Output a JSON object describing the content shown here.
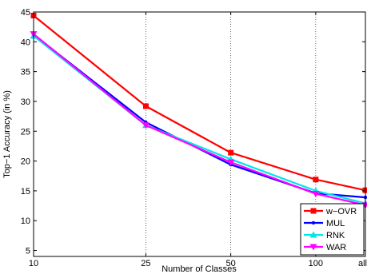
{
  "chart_data": {
    "type": "line",
    "xlabel": "Number of Classes",
    "ylabel": "Top−1 Accuracy (in %)",
    "x_categories": [
      "10",
      "25",
      "50",
      "100",
      "all"
    ],
    "x_positions": [
      10,
      25,
      50,
      100,
      150
    ],
    "x_scale": "log",
    "xlim": [
      10,
      150
    ],
    "ylim": [
      4,
      45
    ],
    "yticks": [
      5,
      10,
      15,
      20,
      25,
      30,
      35,
      40,
      45
    ],
    "grid": "dotted vertical at x ticks",
    "legend_position": "bottom-right",
    "series": [
      {
        "name": "w−OVR",
        "color": "#ff0000",
        "marker": "square",
        "values": [
          44.4,
          29.2,
          21.4,
          16.9,
          15.1
        ]
      },
      {
        "name": "MUL",
        "color": "#0000ff",
        "marker": "point",
        "values": [
          41.2,
          26.5,
          19.4,
          14.6,
          13.9
        ]
      },
      {
        "name": "RNK",
        "color": "#00e5ee",
        "marker": "triangle",
        "values": [
          41.0,
          26.0,
          20.3,
          15.0,
          12.9
        ]
      },
      {
        "name": "WAR",
        "color": "#ff00ff",
        "marker": "triangle-down",
        "values": [
          41.3,
          26.0,
          19.8,
          14.5,
          12.6
        ]
      }
    ]
  }
}
